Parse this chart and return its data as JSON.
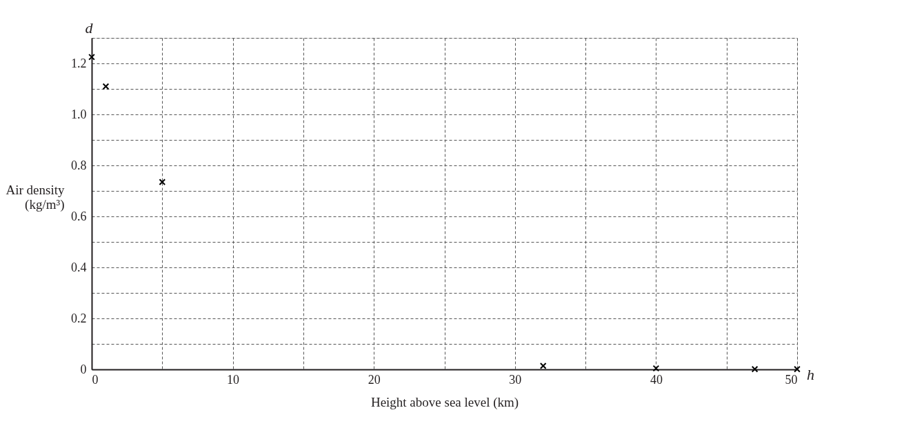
{
  "chart_data": {
    "type": "scatter",
    "xlabel": "Height above sea level (km)",
    "ylabel": "Air density (kg/m³)",
    "annotations": [
      "d",
      "h"
    ],
    "x": [
      0,
      1,
      5,
      32,
      40,
      47,
      50
    ],
    "series": [
      {
        "color": "#000000",
        "values": [
          1.225,
          1.11,
          0.735,
          0.014,
          0.004,
          0.001,
          0.001
        ]
      }
    ],
    "xlim": [
      0,
      50
    ],
    "ylim": [
      0,
      1.3
    ],
    "xticks": [
      0,
      {
        "value": 5,
        "label": null
      },
      10,
      {
        "value": 15,
        "label": null
      },
      20,
      {
        "value": 25,
        "label": null
      },
      30,
      {
        "value": 35,
        "label": null
      },
      40,
      {
        "value": 45,
        "label": null
      },
      50
    ],
    "yticks": [
      {
        "value": 0,
        "label": "0"
      },
      {
        "value": 0.1,
        "label": null
      },
      0.2,
      {
        "value": 0.3,
        "label": null
      },
      0.4,
      {
        "value": 0.5,
        "label": null
      },
      0.6,
      {
        "value": 0.7,
        "label": null
      },
      0.8,
      {
        "value": 0.9,
        "label": null
      },
      {
        "value": 1.0,
        "label": "1.0"
      },
      {
        "value": 1.1,
        "label": null
      },
      1.2,
      {
        "value": 1.3,
        "label": null
      }
    ],
    "grid": true,
    "marker": "cross"
  }
}
